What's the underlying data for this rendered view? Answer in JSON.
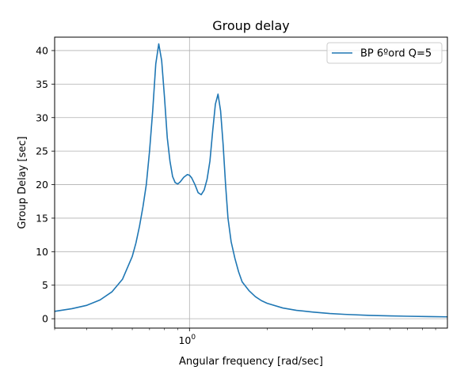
{
  "chart_data": {
    "type": "line",
    "title": "Group delay",
    "xlabel": "Angular frequency [rad/sec]",
    "ylabel": "Group Delay [sec]",
    "x_scale": "log",
    "xlim": [
      0.3,
      10
    ],
    "ylim": [
      -1.4,
      42
    ],
    "grid": true,
    "legend_position": "top-right",
    "x_tick_labels": [
      {
        "base": "10",
        "exp": "0",
        "value": 1
      }
    ],
    "y_ticks": [
      0,
      5,
      10,
      15,
      20,
      25,
      30,
      35,
      40
    ],
    "series": [
      {
        "name": "BP 6ºord Q=5",
        "color": "#1f77b4",
        "x": [
          0.3,
          0.35,
          0.4,
          0.45,
          0.5,
          0.55,
          0.6,
          0.62,
          0.64,
          0.66,
          0.68,
          0.7,
          0.72,
          0.74,
          0.76,
          0.78,
          0.8,
          0.82,
          0.84,
          0.86,
          0.88,
          0.9,
          0.92,
          0.95,
          0.98,
          1.0,
          1.02,
          1.05,
          1.08,
          1.11,
          1.14,
          1.17,
          1.2,
          1.23,
          1.26,
          1.29,
          1.32,
          1.35,
          1.38,
          1.41,
          1.45,
          1.5,
          1.55,
          1.6,
          1.7,
          1.8,
          1.9,
          2.0,
          2.3,
          2.6,
          3.0,
          3.5,
          4.0,
          5.0,
          6.0,
          7.0,
          8.5,
          10.0
        ],
        "y": [
          1.1,
          1.5,
          2.0,
          2.8,
          4.0,
          5.9,
          9.3,
          11.3,
          13.8,
          16.7,
          20.0,
          25.0,
          31.0,
          38.0,
          41.0,
          38.5,
          33.0,
          27.0,
          23.5,
          21.2,
          20.3,
          20.1,
          20.4,
          21.1,
          21.5,
          21.4,
          21.0,
          20.0,
          18.8,
          18.5,
          19.2,
          20.8,
          23.5,
          28.0,
          32.0,
          33.5,
          31.0,
          26.0,
          20.0,
          15.0,
          11.5,
          9.0,
          7.0,
          5.5,
          4.2,
          3.3,
          2.7,
          2.3,
          1.6,
          1.25,
          1.0,
          0.78,
          0.65,
          0.5,
          0.42,
          0.37,
          0.32,
          0.28
        ]
      }
    ]
  }
}
